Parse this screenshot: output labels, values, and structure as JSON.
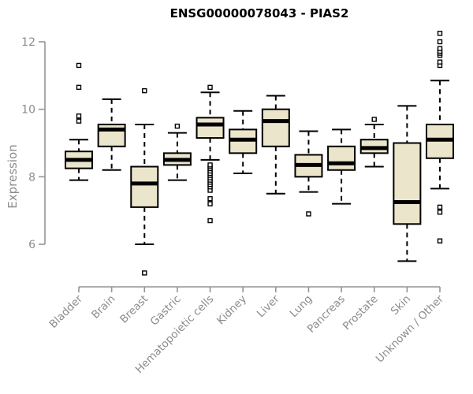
{
  "chart_data": {
    "type": "boxplot",
    "title": "ENSG00000078043 - PIAS2",
    "xlabel": "",
    "ylabel": "Expression",
    "ylim": [
      6,
      12
    ],
    "yticks": [
      6,
      8,
      10,
      12
    ],
    "grid": false,
    "legend": "none",
    "categories": [
      "Bladder",
      "Brain",
      "Breast",
      "Gastric",
      "Hematopoietic cells",
      "Kidney",
      "Liver",
      "Lung",
      "Pancreas",
      "Prostate",
      "Skin",
      "Unknown / Other"
    ],
    "series": [
      {
        "name": "Bladder",
        "low": 7.9,
        "q1": 8.25,
        "median": 8.5,
        "q3": 8.75,
        "high": 9.1,
        "outliers": [
          9.65,
          9.8,
          10.65,
          11.3
        ]
      },
      {
        "name": "Brain",
        "low": 8.2,
        "q1": 8.9,
        "median": 9.4,
        "q3": 9.55,
        "high": 10.3,
        "outliers": []
      },
      {
        "name": "Breast",
        "low": 6.0,
        "q1": 7.1,
        "median": 7.8,
        "q3": 8.3,
        "high": 9.55,
        "outliers": [
          5.15,
          10.55
        ]
      },
      {
        "name": "Gastric",
        "low": 7.9,
        "q1": 8.35,
        "median": 8.5,
        "q3": 8.7,
        "high": 9.3,
        "outliers": [
          9.5
        ]
      },
      {
        "name": "Hematopoietic cells",
        "low": 8.5,
        "q1": 9.15,
        "median": 9.55,
        "q3": 9.75,
        "high": 10.5,
        "outliers": [
          6.7,
          7.2,
          7.35,
          7.6,
          7.7,
          7.77,
          7.84,
          7.9,
          7.97,
          8.04,
          8.1,
          8.17,
          8.24,
          8.3,
          8.35,
          10.65
        ]
      },
      {
        "name": "Kidney",
        "low": 8.1,
        "q1": 8.7,
        "median": 9.1,
        "q3": 9.4,
        "high": 9.95,
        "outliers": []
      },
      {
        "name": "Liver",
        "low": 7.5,
        "q1": 8.9,
        "median": 9.65,
        "q3": 10.0,
        "high": 10.4,
        "outliers": []
      },
      {
        "name": "Lung",
        "low": 7.55,
        "q1": 8.0,
        "median": 8.35,
        "q3": 8.65,
        "high": 9.35,
        "outliers": [
          6.9
        ]
      },
      {
        "name": "Pancreas",
        "low": 7.2,
        "q1": 8.2,
        "median": 8.4,
        "q3": 8.9,
        "high": 9.4,
        "outliers": []
      },
      {
        "name": "Prostate",
        "low": 8.3,
        "q1": 8.7,
        "median": 8.85,
        "q3": 9.1,
        "high": 9.55,
        "outliers": [
          9.7
        ]
      },
      {
        "name": "Skin",
        "low": 5.5,
        "q1": 6.6,
        "median": 7.25,
        "q3": 9.0,
        "high": 10.1,
        "outliers": []
      },
      {
        "name": "Unknown / Other",
        "low": 7.65,
        "q1": 8.55,
        "median": 9.1,
        "q3": 9.55,
        "high": 10.85,
        "outliers": [
          6.1,
          6.95,
          7.1,
          11.3,
          11.4,
          11.6,
          11.66,
          11.72,
          11.8,
          12.0,
          12.25
        ]
      }
    ],
    "style": {
      "box_fill": "#EBE5CB",
      "box_stroke": "#000000",
      "median_color": "#000000",
      "whisker_color": "#000000",
      "outlier_fill": "#ffffff",
      "outlier_stroke": "#000000",
      "axis_color": "#949494",
      "tick_label_color": "#8c8c8c",
      "title_color": "#000000"
    }
  }
}
